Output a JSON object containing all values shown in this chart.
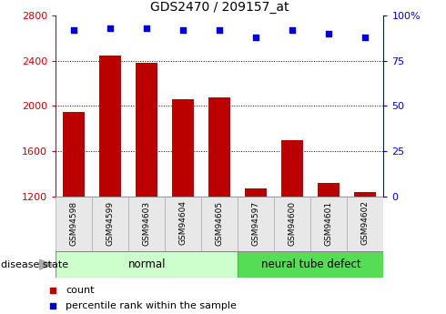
{
  "title": "GDS2470 / 209157_at",
  "samples": [
    "GSM94598",
    "GSM94599",
    "GSM94603",
    "GSM94604",
    "GSM94605",
    "GSM94597",
    "GSM94600",
    "GSM94601",
    "GSM94602"
  ],
  "counts": [
    1950,
    2450,
    2380,
    2060,
    2080,
    1270,
    1700,
    1320,
    1240
  ],
  "percentiles": [
    92,
    93,
    93,
    92,
    92,
    88,
    92,
    90,
    88
  ],
  "ylim_left": [
    1200,
    2800
  ],
  "ylim_right": [
    0,
    100
  ],
  "yticks_left": [
    1200,
    1600,
    2000,
    2400,
    2800
  ],
  "yticks_right": [
    0,
    25,
    50,
    75,
    100
  ],
  "bar_color": "#bb0000",
  "scatter_color": "#0000cc",
  "normal_color": "#ccffcc",
  "neural_color": "#55dd55",
  "disease_label_normal": "normal",
  "disease_label_neural": "neural tube defect",
  "xlabel_disease": "disease state",
  "legend_count": "count",
  "legend_percentile": "percentile rank within the sample",
  "tick_label_color_left": "#cc0000",
  "tick_label_color_right": "#0000cc",
  "bar_width": 0.6,
  "bar_bottom": 1200
}
